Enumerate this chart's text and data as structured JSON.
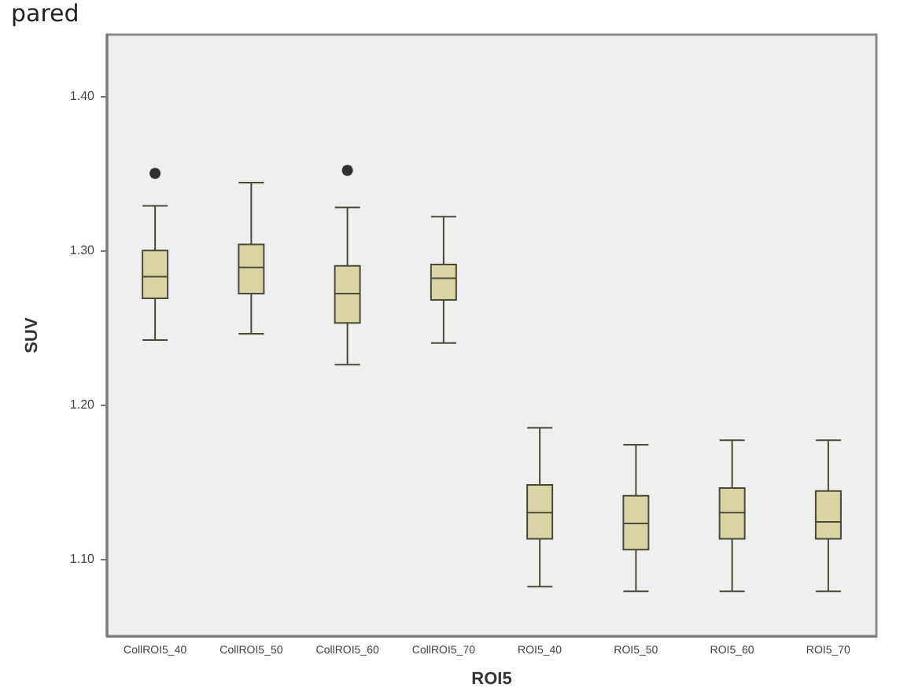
{
  "chart_data": {
    "type": "box",
    "title": "pared",
    "xlabel": "ROI5",
    "ylabel": "SUV",
    "categories": [
      "CollROI5_40",
      "CollROI5_50",
      "CollROI5_60",
      "CollROI5_70",
      "ROI5_40",
      "ROI5_50",
      "ROI5_60",
      "ROI5_70"
    ],
    "series": [
      {
        "color": "#d9d4a4",
        "boxes": [
          {
            "low": 1.242,
            "q1": 1.269,
            "median": 1.283,
            "q3": 1.3,
            "high": 1.329,
            "outliers": [
              1.35
            ]
          },
          {
            "low": 1.246,
            "q1": 1.272,
            "median": 1.289,
            "q3": 1.304,
            "high": 1.344
          },
          {
            "low": 1.226,
            "q1": 1.253,
            "median": 1.272,
            "q3": 1.29,
            "high": 1.328,
            "outliers": [
              1.352
            ]
          },
          {
            "low": 1.24,
            "q1": 1.268,
            "median": 1.282,
            "q3": 1.291,
            "high": 1.322
          },
          {
            "low": 1.082,
            "q1": 1.113,
            "median": 1.13,
            "q3": 1.148,
            "high": 1.185
          },
          {
            "low": 1.079,
            "q1": 1.106,
            "median": 1.123,
            "q3": 1.141,
            "high": 1.174
          },
          {
            "low": 1.079,
            "q1": 1.113,
            "median": 1.13,
            "q3": 1.146,
            "high": 1.177
          },
          {
            "low": 1.079,
            "q1": 1.113,
            "median": 1.124,
            "q3": 1.144,
            "high": 1.177
          }
        ]
      }
    ],
    "ylim": [
      1.05,
      1.44
    ],
    "yticks": [
      {
        "value": 1.1,
        "label": "1.10"
      },
      {
        "value": 1.2,
        "label": "1.20"
      },
      {
        "value": 1.3,
        "label": "1.30"
      },
      {
        "value": 1.4,
        "label": "1.40"
      }
    ],
    "grid": false
  }
}
